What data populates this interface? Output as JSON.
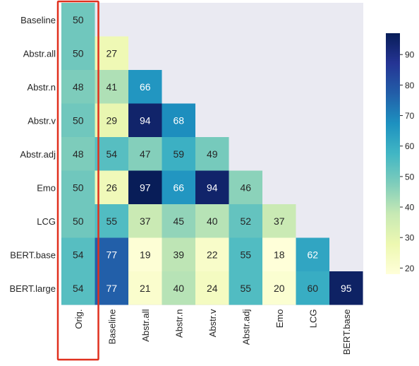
{
  "chart_data": {
    "type": "heatmap",
    "row_labels": [
      "Baseline",
      "Abstr.all",
      "Abstr.n",
      "Abstr.v",
      "Abstr.adj",
      "Emo",
      "LCG",
      "BERT.base",
      "BERT.large"
    ],
    "col_labels": [
      "Orig.",
      "Baseline",
      "Abstr.all",
      "Abstr.n",
      "Abstr.v",
      "Abstr.adj",
      "Emo",
      "LCG",
      "BERT.base"
    ],
    "values": [
      [
        50,
        null,
        null,
        null,
        null,
        null,
        null,
        null,
        null
      ],
      [
        50,
        27,
        null,
        null,
        null,
        null,
        null,
        null,
        null
      ],
      [
        48,
        41,
        66,
        null,
        null,
        null,
        null,
        null,
        null
      ],
      [
        50,
        29,
        94,
        68,
        null,
        null,
        null,
        null,
        null
      ],
      [
        48,
        54,
        47,
        59,
        49,
        null,
        null,
        null,
        null
      ],
      [
        50,
        26,
        97,
        66,
        94,
        46,
        null,
        null,
        null
      ],
      [
        50,
        55,
        37,
        45,
        40,
        52,
        37,
        null,
        null
      ],
      [
        54,
        77,
        19,
        39,
        22,
        55,
        18,
        62,
        null
      ],
      [
        54,
        77,
        21,
        40,
        24,
        55,
        20,
        60,
        95
      ]
    ],
    "colorscale": "YlGnBu",
    "vmin": 18,
    "vmax": 97,
    "colorbar_ticks": [
      20,
      30,
      40,
      50,
      60,
      70,
      80,
      90
    ],
    "highlight": {
      "column": "Orig.",
      "color": "#e0301e"
    },
    "empty_cell_color": "#eaeaf2"
  }
}
